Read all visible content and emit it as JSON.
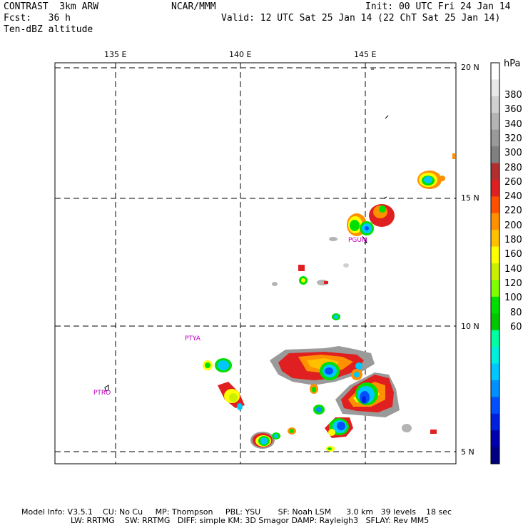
{
  "header": {
    "model": "CONTRAST  3km ARW",
    "fcst": "Fcst:   36 h",
    "field": "Ten-dBZ altitude",
    "center": "NCAR/MMM",
    "init": "Init: 00 UTC Fri 24 Jan 14",
    "valid": "Valid: 12 UTC Sat 25 Jan 14 (22 ChT Sat 25 Jan 14)"
  },
  "map": {
    "lon_labels": [
      "135 E",
      "140 E",
      "145 E"
    ],
    "lat_labels": [
      "20 N",
      "15 N",
      "10 N",
      "5 N"
    ],
    "stations": [
      "PGUM",
      "PTYA",
      "PTRO"
    ]
  },
  "colorbar": {
    "unit": "hPa",
    "labels": [
      "380",
      "360",
      "340",
      "320",
      "300",
      "280",
      "260",
      "240",
      "220",
      "200",
      "180",
      "160",
      "140",
      "120",
      "100",
      "80",
      "60"
    ],
    "colors": [
      "#ffffff",
      "#e8e8e8",
      "#d0d0d0",
      "#b4b4b4",
      "#9a9a9a",
      "#808080",
      "#b03030",
      "#e02020",
      "#ff5000",
      "#ff9000",
      "#ffc000",
      "#ffff00",
      "#c8f000",
      "#80ff00",
      "#00e000",
      "#00c800",
      "#00ffa0",
      "#00f0e0",
      "#00c8ff",
      "#0090ff",
      "#0050ff",
      "#0020e0",
      "#0000b0",
      "#000080"
    ]
  },
  "footer": {
    "line1": "Model Info: V3.5.1    CU: No Cu     MP: Thompson     PBL: YSU       SF: Noah LSM      3.0 km   39 levels    18 sec",
    "line2": "LW: RRTMG    SW: RRTMG   DIFF: simple KM: 3D Smagor DAMP: Rayleigh3   SFLAY: Rev MM5"
  }
}
